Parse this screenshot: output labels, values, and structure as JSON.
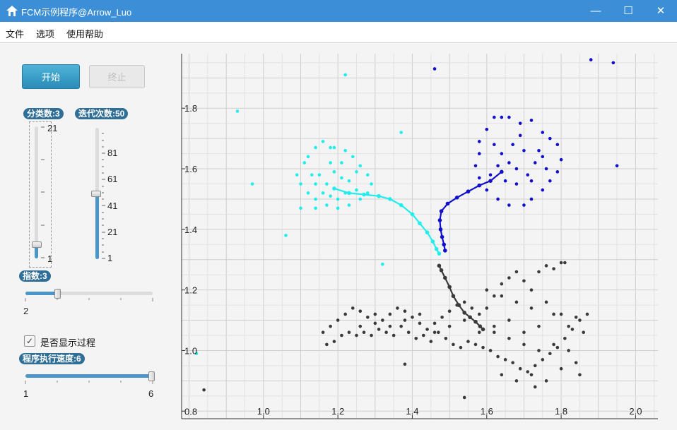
{
  "window": {
    "title": "FCM示例程序@Arrow_Luo",
    "minimize_glyph": "—",
    "maximize_glyph": "☐",
    "close_glyph": "✕"
  },
  "menu": [
    "文件",
    "选项",
    "使用帮助"
  ],
  "controls": {
    "start_label": "开始",
    "stop_label": "终止",
    "class_count": {
      "label": "分类数:3",
      "value": 3,
      "min": 1,
      "max": 21,
      "tick_labels": [
        "21",
        "1"
      ]
    },
    "iterations": {
      "label": "迭代次数:50",
      "value": 50,
      "min": 1,
      "max": 100,
      "tick_labels": [
        "81",
        "61",
        "41",
        "21",
        "1"
      ]
    },
    "exponent": {
      "label": "指数:3",
      "value": 3,
      "min": 2,
      "max": 6,
      "min_label": "2"
    },
    "show_process": {
      "label": "是否显示过程",
      "checked": true
    },
    "speed": {
      "label": "程序执行速度:6",
      "value": 6,
      "min": 1,
      "max": 6,
      "min_label": "1",
      "max_label": "6"
    }
  },
  "chart_data": {
    "type": "scatter",
    "xlim": [
      0.78,
      2.06
    ],
    "ylim": [
      0.775,
      1.98
    ],
    "x_ticks": [
      "1.0",
      "1.2",
      "1.4",
      "1.6",
      "1.8",
      "2.0"
    ],
    "y_ticks": [
      "0.8",
      "1.0",
      "1.2",
      "1.4",
      "1.6",
      "1.8"
    ],
    "grid": true,
    "colors": {
      "cyan": "#22eded",
      "blue": "#1010cc",
      "dark": "#3a3a3a"
    },
    "series": [
      {
        "color": "#22eded",
        "points": [
          [
            0.93,
            1.79
          ],
          [
            0.97,
            1.55
          ],
          [
            1.06,
            1.38
          ],
          [
            1.22,
            1.91
          ],
          [
            1.37,
            1.72
          ],
          [
            1.32,
            1.285
          ],
          [
            0.82,
            0.99
          ],
          [
            1.12,
            1.64
          ],
          [
            1.14,
            1.67
          ],
          [
            1.16,
            1.69
          ],
          [
            1.18,
            1.67
          ],
          [
            1.19,
            1.67
          ],
          [
            1.11,
            1.62
          ],
          [
            1.09,
            1.58
          ],
          [
            1.1,
            1.55
          ],
          [
            1.12,
            1.52
          ],
          [
            1.14,
            1.5
          ],
          [
            1.17,
            1.48
          ],
          [
            1.2,
            1.47
          ],
          [
            1.23,
            1.48
          ],
          [
            1.26,
            1.5
          ],
          [
            1.28,
            1.52
          ],
          [
            1.29,
            1.55
          ],
          [
            1.28,
            1.58
          ],
          [
            1.26,
            1.61
          ],
          [
            1.24,
            1.64
          ],
          [
            1.22,
            1.66
          ],
          [
            1.15,
            1.58
          ],
          [
            1.17,
            1.55
          ],
          [
            1.19,
            1.59
          ],
          [
            1.21,
            1.57
          ],
          [
            1.23,
            1.56
          ],
          [
            1.25,
            1.59
          ],
          [
            1.21,
            1.62
          ],
          [
            1.18,
            1.62
          ],
          [
            1.14,
            1.55
          ],
          [
            1.16,
            1.52
          ],
          [
            1.22,
            1.52
          ],
          [
            1.1,
            1.47
          ],
          [
            1.14,
            1.47
          ],
          [
            1.2,
            1.5
          ],
          [
            1.25,
            1.53
          ],
          [
            1.13,
            1.58
          ],
          [
            1.18,
            1.51
          ]
        ]
      },
      {
        "color": "#1010cc",
        "points": [
          [
            1.46,
            1.93
          ],
          [
            1.88,
            1.96
          ],
          [
            1.94,
            1.95
          ],
          [
            1.95,
            1.61
          ],
          [
            1.6,
            1.73
          ],
          [
            1.62,
            1.77
          ],
          [
            1.64,
            1.77
          ],
          [
            1.66,
            1.77
          ],
          [
            1.69,
            1.75
          ],
          [
            1.72,
            1.76
          ],
          [
            1.75,
            1.72
          ],
          [
            1.77,
            1.7
          ],
          [
            1.79,
            1.68
          ],
          [
            1.8,
            1.63
          ],
          [
            1.79,
            1.59
          ],
          [
            1.77,
            1.56
          ],
          [
            1.75,
            1.53
          ],
          [
            1.72,
            1.5
          ],
          [
            1.7,
            1.48
          ],
          [
            1.66,
            1.48
          ],
          [
            1.63,
            1.5
          ],
          [
            1.6,
            1.53
          ],
          [
            1.58,
            1.57
          ],
          [
            1.57,
            1.61
          ],
          [
            1.58,
            1.65
          ],
          [
            1.58,
            1.69
          ],
          [
            1.62,
            1.68
          ],
          [
            1.64,
            1.65
          ],
          [
            1.66,
            1.62
          ],
          [
            1.68,
            1.6
          ],
          [
            1.71,
            1.58
          ],
          [
            1.73,
            1.62
          ],
          [
            1.74,
            1.66
          ],
          [
            1.7,
            1.66
          ],
          [
            1.67,
            1.68
          ],
          [
            1.65,
            1.56
          ],
          [
            1.68,
            1.55
          ],
          [
            1.72,
            1.56
          ],
          [
            1.76,
            1.6
          ],
          [
            1.75,
            1.64
          ],
          [
            1.69,
            1.71
          ],
          [
            1.63,
            1.61
          ],
          [
            1.61,
            1.58
          ]
        ]
      },
      {
        "color": "#3a3a3a",
        "points": [
          [
            0.84,
            0.87
          ],
          [
            1.38,
            0.955
          ],
          [
            1.54,
            0.845
          ],
          [
            1.73,
            0.88
          ],
          [
            1.85,
            0.92
          ],
          [
            1.16,
            1.06
          ],
          [
            1.18,
            1.08
          ],
          [
            1.2,
            1.1
          ],
          [
            1.22,
            1.12
          ],
          [
            1.24,
            1.14
          ],
          [
            1.26,
            1.13
          ],
          [
            1.28,
            1.11
          ],
          [
            1.3,
            1.09
          ],
          [
            1.32,
            1.1
          ],
          [
            1.34,
            1.12
          ],
          [
            1.36,
            1.14
          ],
          [
            1.38,
            1.13
          ],
          [
            1.4,
            1.11
          ],
          [
            1.42,
            1.09
          ],
          [
            1.44,
            1.07
          ],
          [
            1.46,
            1.09
          ],
          [
            1.48,
            1.11
          ],
          [
            1.5,
            1.13
          ],
          [
            1.52,
            1.15
          ],
          [
            1.54,
            1.16
          ],
          [
            1.56,
            1.14
          ],
          [
            1.58,
            1.12
          ],
          [
            1.6,
            1.14
          ],
          [
            1.62,
            1.18
          ],
          [
            1.64,
            1.22
          ],
          [
            1.66,
            1.24
          ],
          [
            1.68,
            1.26
          ],
          [
            1.7,
            1.23
          ],
          [
            1.72,
            1.2
          ],
          [
            1.74,
            1.26
          ],
          [
            1.76,
            1.28
          ],
          [
            1.78,
            1.27
          ],
          [
            1.8,
            1.29
          ],
          [
            1.81,
            1.29
          ],
          [
            1.17,
            1.02
          ],
          [
            1.19,
            1.03
          ],
          [
            1.21,
            1.05
          ],
          [
            1.23,
            1.06
          ],
          [
            1.25,
            1.05
          ],
          [
            1.27,
            1.06
          ],
          [
            1.29,
            1.05
          ],
          [
            1.31,
            1.07
          ],
          [
            1.33,
            1.06
          ],
          [
            1.35,
            1.05
          ],
          [
            1.37,
            1.08
          ],
          [
            1.39,
            1.06
          ],
          [
            1.41,
            1.04
          ],
          [
            1.43,
            1.05
          ],
          [
            1.45,
            1.03
          ],
          [
            1.47,
            1.06
          ],
          [
            1.49,
            1.04
          ],
          [
            1.51,
            1.02
          ],
          [
            1.53,
            1.01
          ],
          [
            1.55,
            1.03
          ],
          [
            1.57,
            1.02
          ],
          [
            1.59,
            1.01
          ],
          [
            1.61,
            1.0
          ],
          [
            1.63,
            0.98
          ],
          [
            1.65,
            0.97
          ],
          [
            1.67,
            0.96
          ],
          [
            1.69,
            0.94
          ],
          [
            1.71,
            0.93
          ],
          [
            1.73,
            0.95
          ],
          [
            1.75,
            0.97
          ],
          [
            1.77,
            0.99
          ],
          [
            1.79,
            1.01
          ],
          [
            1.81,
            1.04
          ],
          [
            1.83,
            1.07
          ],
          [
            1.85,
            1.1
          ],
          [
            1.87,
            1.12
          ],
          [
            1.26,
            1.08
          ],
          [
            1.3,
            1.12
          ],
          [
            1.34,
            1.08
          ],
          [
            1.38,
            1.1
          ],
          [
            1.42,
            1.12
          ],
          [
            1.46,
            1.06
          ],
          [
            1.5,
            1.08
          ],
          [
            1.54,
            1.1
          ],
          [
            1.58,
            1.06
          ],
          [
            1.62,
            1.08
          ],
          [
            1.66,
            1.1
          ],
          [
            1.7,
            1.06
          ],
          [
            1.74,
            1.08
          ],
          [
            1.78,
            1.12
          ],
          [
            1.82,
            1.08
          ],
          [
            1.86,
            1.06
          ],
          [
            1.6,
            1.2
          ],
          [
            1.64,
            1.18
          ],
          [
            1.68,
            1.16
          ],
          [
            1.72,
            1.14
          ],
          [
            1.76,
            1.16
          ],
          [
            1.8,
            1.12
          ],
          [
            1.84,
            1.11
          ],
          [
            1.62,
            1.06
          ],
          [
            1.66,
            1.04
          ],
          [
            1.7,
            1.02
          ],
          [
            1.74,
            1.0
          ],
          [
            1.78,
            1.02
          ],
          [
            1.82,
            1.0
          ],
          [
            1.64,
            0.92
          ],
          [
            1.68,
            0.9
          ],
          [
            1.72,
            0.92
          ],
          [
            1.76,
            0.9
          ],
          [
            1.8,
            0.94
          ],
          [
            1.84,
            0.96
          ]
        ]
      }
    ],
    "trails": [
      {
        "color": "#22eded",
        "points": [
          [
            1.19,
            1.535
          ],
          [
            1.23,
            1.52
          ],
          [
            1.27,
            1.515
          ],
          [
            1.31,
            1.51
          ],
          [
            1.34,
            1.5
          ],
          [
            1.37,
            1.48
          ],
          [
            1.4,
            1.45
          ],
          [
            1.42,
            1.42
          ],
          [
            1.44,
            1.39
          ],
          [
            1.455,
            1.36
          ],
          [
            1.465,
            1.335
          ],
          [
            1.472,
            1.32
          ]
        ]
      },
      {
        "color": "#1010cc",
        "points": [
          [
            1.64,
            1.59
          ],
          [
            1.61,
            1.56
          ],
          [
            1.58,
            1.545
          ],
          [
            1.55,
            1.525
          ],
          [
            1.52,
            1.505
          ],
          [
            1.495,
            1.485
          ],
          [
            1.478,
            1.46
          ],
          [
            1.474,
            1.43
          ],
          [
            1.476,
            1.4
          ],
          [
            1.48,
            1.375
          ],
          [
            1.485,
            1.35
          ],
          [
            1.488,
            1.33
          ]
        ]
      },
      {
        "color": "#3a3a3a",
        "points": [
          [
            1.472,
            1.28
          ],
          [
            1.478,
            1.265
          ],
          [
            1.488,
            1.24
          ],
          [
            1.5,
            1.21
          ],
          [
            1.51,
            1.18
          ],
          [
            1.525,
            1.15
          ],
          [
            1.54,
            1.125
          ],
          [
            1.555,
            1.11
          ],
          [
            1.57,
            1.095
          ],
          [
            1.582,
            1.08
          ],
          [
            1.59,
            1.07
          ]
        ]
      }
    ]
  }
}
